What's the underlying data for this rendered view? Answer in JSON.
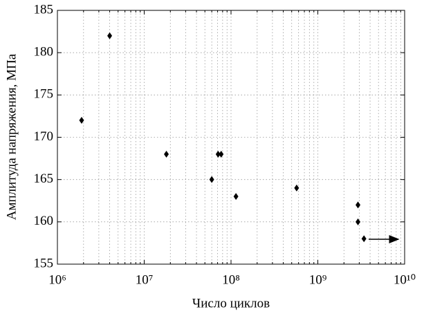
{
  "chart_data": {
    "type": "scatter",
    "xlabel": "Число циклов",
    "ylabel": "Амплитуда напряжения, МПа",
    "xscale": "log",
    "grid": true,
    "color": "#000000",
    "series": [
      {
        "x": [
          1900000,
          4000000,
          18000000,
          60000000,
          71000000,
          77000000,
          114000000,
          570000000,
          2900000000,
          2900000000,
          3400000000
        ],
        "values": [
          172,
          182,
          168,
          165,
          168,
          168,
          163,
          164,
          162,
          160,
          158
        ]
      }
    ],
    "xlim": [
      1000000,
      10000000000
    ],
    "xticks": [
      {
        "value": 1000000,
        "label": "10⁶"
      },
      {
        "value": 10000000,
        "label": "10⁷"
      },
      {
        "value": 100000000,
        "label": "10⁸"
      },
      {
        "value": 1000000000,
        "label": "10⁹"
      },
      {
        "value": 10000000000,
        "label": "10¹⁰"
      }
    ],
    "xminorticks": [
      2000000,
      3000000,
      4000000,
      5000000,
      6000000,
      7000000,
      8000000,
      9000000,
      20000000,
      30000000,
      40000000,
      50000000,
      60000000,
      70000000,
      80000000,
      90000000,
      200000000,
      300000000,
      400000000,
      500000000,
      600000000,
      700000000,
      800000000,
      900000000,
      2000000000,
      3000000000,
      4000000000,
      5000000000,
      6000000000,
      7000000000,
      8000000000,
      9000000000
    ],
    "ylim": [
      155,
      185
    ],
    "yticks": [
      155,
      160,
      165,
      170,
      175,
      180,
      185
    ]
  }
}
